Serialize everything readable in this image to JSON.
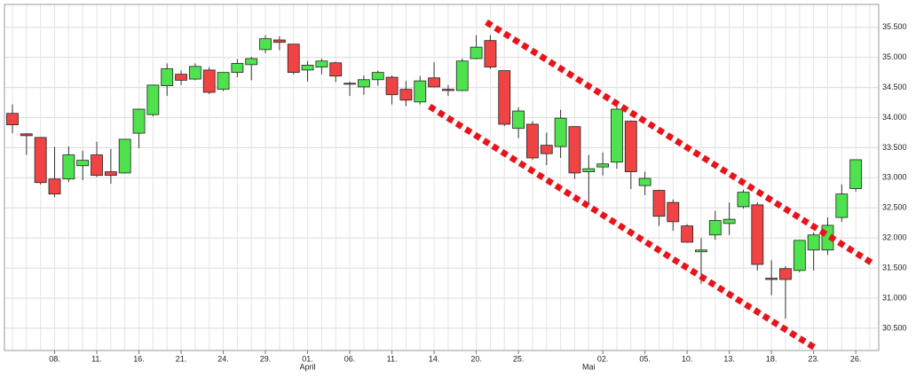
{
  "chart_data": {
    "type": "candlestick",
    "categories": [
      null,
      null,
      null,
      "08.",
      null,
      null,
      "11.",
      null,
      null,
      "16.",
      null,
      null,
      "21.",
      null,
      null,
      "24.",
      null,
      null,
      "29.",
      null,
      null,
      "01.",
      null,
      null,
      "06.",
      null,
      null,
      "11.",
      null,
      null,
      "14.",
      null,
      null,
      "20.",
      null,
      null,
      "25.",
      null,
      null,
      null,
      null,
      null,
      "02.",
      null,
      null,
      "05.",
      null,
      null,
      "10.",
      null,
      null,
      "13.",
      null,
      null,
      "18.",
      null,
      null,
      "23.",
      null,
      null,
      "26.",
      null
    ],
    "x_sublabels": [
      null,
      null,
      null,
      null,
      null,
      null,
      null,
      null,
      null,
      null,
      null,
      null,
      null,
      null,
      null,
      null,
      null,
      null,
      null,
      null,
      null,
      "April",
      null,
      null,
      null,
      null,
      null,
      null,
      null,
      null,
      null,
      null,
      null,
      null,
      null,
      null,
      null,
      null,
      null,
      null,
      null,
      "Mai",
      null,
      null,
      null,
      null,
      null,
      null,
      null,
      null,
      null,
      null,
      null,
      null,
      null,
      null,
      null,
      null,
      null,
      null,
      null
    ],
    "open": [
      34070,
      33730,
      33670,
      32980,
      32980,
      33200,
      33380,
      33100,
      33080,
      33740,
      34050,
      34530,
      34720,
      34640,
      34790,
      34470,
      34750,
      34880,
      35130,
      35290,
      35220,
      34790,
      34840,
      34910,
      34570,
      34510,
      34630,
      34670,
      34470,
      34260,
      34660,
      34470,
      34450,
      34980,
      35280,
      34780,
      33820,
      33890,
      33540,
      33520,
      33850,
      33100,
      33180,
      33260,
      33940,
      32870,
      32790,
      32590,
      32200,
      31770,
      32050,
      32240,
      32520,
      32550,
      31330,
      31490,
      31460,
      31800,
      31800,
      32340,
      32820
    ],
    "high": [
      34220,
      33740,
      33670,
      33510,
      33520,
      33450,
      33600,
      33480,
      33640,
      34140,
      34540,
      34900,
      34780,
      34900,
      34840,
      34750,
      34970,
      35010,
      35370,
      35350,
      35220,
      34940,
      34980,
      34930,
      34600,
      34700,
      34780,
      34700,
      34610,
      34690,
      34920,
      34540,
      34980,
      35370,
      35370,
      34780,
      34170,
      33940,
      33750,
      34130,
      33850,
      33380,
      33420,
      34190,
      33950,
      33100,
      32800,
      32640,
      32230,
      32000,
      32450,
      32590,
      32800,
      32590,
      31630,
      31530,
      31960,
      32090,
      32340,
      32890,
      33300
    ],
    "low": [
      33740,
      33380,
      32890,
      32680,
      32930,
      32960,
      33010,
      32900,
      33070,
      33490,
      34020,
      34360,
      34540,
      34620,
      34390,
      34440,
      34670,
      34620,
      35070,
      35120,
      34720,
      34600,
      34720,
      34590,
      34360,
      34380,
      34530,
      34220,
      34190,
      34220,
      34500,
      34360,
      34440,
      34970,
      34810,
      33860,
      33660,
      33300,
      33210,
      33330,
      32980,
      32560,
      33040,
      33150,
      32810,
      32710,
      32200,
      32120,
      31920,
      31240,
      31970,
      32050,
      32490,
      31460,
      31050,
      30660,
      31430,
      31460,
      31720,
      32270,
      32770
    ],
    "close": [
      33880,
      33700,
      32920,
      32730,
      33380,
      33290,
      33040,
      33040,
      33640,
      34140,
      34540,
      34810,
      34620,
      34850,
      34420,
      34750,
      34900,
      34980,
      35310,
      35250,
      34750,
      34870,
      34940,
      34690,
      34560,
      34630,
      34750,
      34380,
      34290,
      34610,
      34510,
      34450,
      34940,
      35170,
      34840,
      33890,
      34110,
      33330,
      33400,
      33990,
      33080,
      33150,
      33230,
      34140,
      33100,
      32990,
      32360,
      32270,
      31930,
      31800,
      32290,
      32310,
      32760,
      31560,
      31310,
      31310,
      31960,
      32050,
      32210,
      32730,
      33300
    ],
    "up_color": "#4ee24e",
    "down_color": "#f04444",
    "ylim": [
      30130,
      35880
    ],
    "yticks": [
      {
        "value": 30500,
        "label": "30.500"
      },
      {
        "value": 31000,
        "label": "31.000"
      },
      {
        "value": 31500,
        "label": "31.500"
      },
      {
        "value": 32000,
        "label": "32.000"
      },
      {
        "value": 32500,
        "label": "32.500"
      },
      {
        "value": 33000,
        "label": "33.000"
      },
      {
        "value": 33500,
        "label": "33.500"
      },
      {
        "value": 34000,
        "label": "34.000"
      },
      {
        "value": 34500,
        "label": "34.500"
      },
      {
        "value": 35000,
        "label": "35.000"
      },
      {
        "value": 35500,
        "label": "35.500"
      }
    ],
    "y_axis_side": "right",
    "grid": true
  }
}
